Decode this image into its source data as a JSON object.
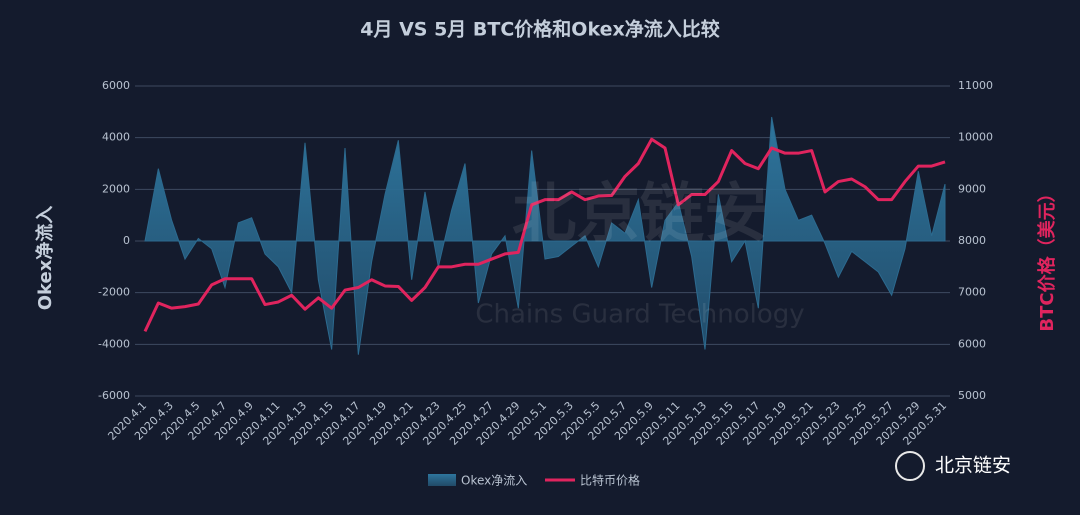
{
  "chart_data": {
    "type": "area-line",
    "title": "4月 VS 5月 BTC价格和Okex净流入比较",
    "y_axis_label": "Okex净流入",
    "y2_axis_label": "BTC价格（美元）",
    "watermark": "北京链安",
    "watermark_subtitle": "Chains Guard Technology",
    "logo_text": "北京链安",
    "categories": [
      "2020.4.1",
      null,
      "2020.4.3",
      null,
      "2020.4.5",
      null,
      "2020.4.7",
      null,
      "2020.4.9",
      null,
      "2020.4.11",
      null,
      "2020.4.13",
      null,
      "2020.4.15",
      null,
      "2020.4.17",
      null,
      "2020.4.19",
      null,
      "2020.4.21",
      null,
      "2020.4.23",
      null,
      "2020.4.25",
      null,
      "2020.4.27",
      null,
      "2020.4.29",
      null,
      "2020.5.1",
      null,
      "2020.5.3",
      null,
      "2020.5.5",
      null,
      "2020.5.7",
      null,
      "2020.5.9",
      null,
      "2020.5.11",
      null,
      "2020.5.13",
      null,
      "2020.5.15",
      null,
      "2020.5.17",
      null,
      "2020.5.19",
      null,
      "2020.5.21",
      null,
      "2020.5.23",
      null,
      "2020.5.25",
      null,
      "2020.5.27",
      null,
      "2020.5.29",
      null,
      "2020.5.31"
    ],
    "series": [
      {
        "name": "Okex净流入",
        "color": "#2c6a8f",
        "values": [
          0,
          2800,
          800,
          -700,
          100,
          -300,
          -1800,
          700,
          900,
          -500,
          -1000,
          -2000,
          3800,
          -1500,
          -4200,
          3600,
          -4400,
          -800,
          1800,
          3900,
          -1500,
          1900,
          -1000,
          1200,
          3000,
          -2400,
          -500,
          200,
          -2600,
          3500,
          -700,
          -600,
          -200,
          200,
          -1000,
          700,
          300,
          1600,
          -1800,
          800,
          1500,
          -600,
          -4200,
          1800,
          -800,
          0,
          -2600,
          4800,
          2000,
          800,
          1000,
          -100,
          -1400,
          -400,
          -800,
          -1200,
          -2100,
          -300,
          2700,
          200,
          2200
        ]
      },
      {
        "name": "比特币价格",
        "color": "#e0245e",
        "axis": "y2",
        "values": [
          6250,
          6800,
          6700,
          6730,
          6780,
          7150,
          7270,
          7270,
          7270,
          6770,
          6820,
          6950,
          6680,
          6900,
          6700,
          7050,
          7100,
          7250,
          7130,
          7120,
          6850,
          7100,
          7500,
          7500,
          7550,
          7550,
          7650,
          7750,
          7780,
          8700,
          8800,
          8800,
          8950,
          8800,
          8870,
          8880,
          9250,
          9500,
          9970,
          9800,
          8700,
          8900,
          8900,
          9150,
          9750,
          9500,
          9400,
          9800,
          9700,
          9700,
          9750,
          8950,
          9150,
          9200,
          9050,
          8800,
          8800,
          9150,
          9450,
          9450,
          9530
        ]
      }
    ],
    "ylim": [
      -6000,
      6000
    ],
    "yticks": [
      -6000,
      -4000,
      -2000,
      0,
      2000,
      4000,
      6000
    ],
    "y2lim": [
      5000,
      11000
    ],
    "y2ticks": [
      5000,
      6000,
      7000,
      8000,
      9000,
      10000,
      11000
    ],
    "grid": true
  }
}
